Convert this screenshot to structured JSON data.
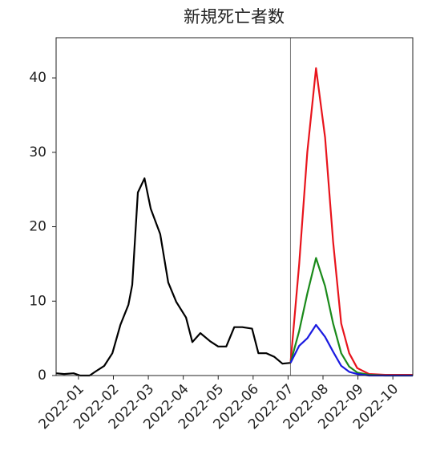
{
  "chart_data": {
    "type": "line",
    "title": "新規死亡者数",
    "xlim": [
      0.36,
      10.57
    ],
    "xticks": [
      {
        "value": 1,
        "label": "2022-01"
      },
      {
        "value": 2,
        "label": "2022-02"
      },
      {
        "value": 3,
        "label": "2022-03"
      },
      {
        "value": 4,
        "label": "2022-04"
      },
      {
        "value": 5,
        "label": "2022-05"
      },
      {
        "value": 6,
        "label": "2022-06"
      },
      {
        "value": 7,
        "label": "2022-07"
      },
      {
        "value": 8,
        "label": "2022-08"
      },
      {
        "value": 9,
        "label": "2022-09"
      },
      {
        "value": 10,
        "label": "2022-10"
      }
    ],
    "ylim": [
      0,
      45.4
    ],
    "yticks": [
      0,
      10,
      20,
      30,
      40
    ],
    "vline_x": 7.07,
    "series": [
      {
        "color": "#000000",
        "x": [
          0.36,
          0.59,
          0.86,
          1.05,
          1.32,
          1.51,
          1.74,
          1.97,
          2.2,
          2.43,
          2.54,
          2.7,
          2.89,
          3.07,
          3.34,
          3.57,
          3.8,
          4.08,
          4.26,
          4.49,
          4.77,
          5.0,
          5.23,
          5.46,
          5.69,
          5.97,
          6.15,
          6.38,
          6.61,
          6.84,
          7.07
        ],
        "values": [
          0.3,
          0.2,
          0.3,
          0,
          0,
          0.6,
          1.3,
          3.0,
          6.8,
          9.5,
          12.2,
          24.6,
          26.5,
          22.4,
          19.0,
          12.5,
          9.9,
          7.8,
          4.5,
          5.7,
          4.6,
          3.9,
          3.9,
          6.5,
          6.5,
          6.3,
          3.0,
          3.0,
          2.5,
          1.6,
          1.7
        ]
      },
      {
        "color": "#e8141c",
        "x": [
          7.07,
          7.32,
          7.55,
          7.8,
          8.06,
          8.29,
          8.52,
          8.75,
          8.98,
          9.32,
          9.78,
          10.57
        ],
        "values": [
          1.7,
          15,
          30,
          41.3,
          32,
          18,
          7,
          3,
          1,
          0.2,
          0.1,
          0.1
        ]
      },
      {
        "color": "#1a8a1a",
        "x": [
          7.07,
          7.32,
          7.55,
          7.8,
          8.06,
          8.29,
          8.52,
          8.75,
          8.98,
          9.32,
          9.78,
          10.57
        ],
        "values": [
          1.7,
          6,
          11,
          15.8,
          12,
          7,
          3,
          1.2,
          0.4,
          0.1,
          0,
          0
        ]
      },
      {
        "color": "#1a1ae0",
        "x": [
          7.07,
          7.32,
          7.55,
          7.8,
          8.06,
          8.29,
          8.52,
          8.75,
          8.98,
          9.32,
          9.78,
          10.57
        ],
        "values": [
          1.7,
          4.0,
          5.0,
          6.8,
          5.2,
          3.2,
          1.3,
          0.5,
          0.2,
          0,
          0,
          0
        ]
      }
    ]
  }
}
